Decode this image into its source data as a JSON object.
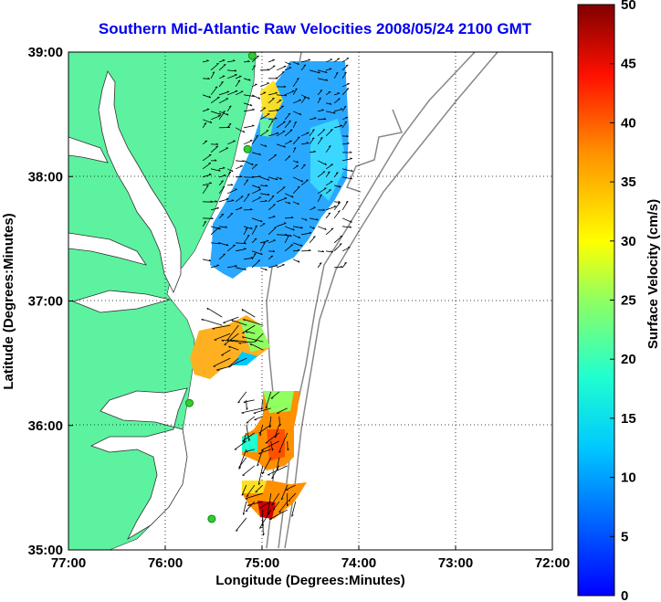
{
  "title": "Southern Mid-Atlantic Raw Velocities 2008/05/24 2100 GMT",
  "xlabel": "Longitude (Degrees:Minutes)",
  "ylabel": "Latitude (Degrees:Minutes)",
  "colorbar_label": "Surface Velocity (cm/s)",
  "x_ticks": [
    "77:00",
    "76:00",
    "75:00",
    "74:00",
    "73:00",
    "72:00"
  ],
  "y_ticks": [
    "39:00",
    "38:00",
    "37:00",
    "36:00",
    "35:00"
  ],
  "colorbar_ticks": [
    "0",
    "5",
    "10",
    "15",
    "20",
    "25",
    "30",
    "35",
    "40",
    "45",
    "50"
  ],
  "colors": {
    "land": "#5cf2a0",
    "title": "#0000ee",
    "station": "#33cc33",
    "contour": "#888888"
  },
  "chart_data": {
    "type": "heatmap",
    "title": "Southern Mid-Atlantic Raw Velocities 2008/05/24 2100 GMT",
    "xlabel": "Longitude (Degrees:Minutes)",
    "ylabel": "Latitude (Degrees:Minutes)",
    "xlim": [
      -77,
      -72
    ],
    "ylim": [
      35,
      39
    ],
    "colorbar": {
      "label": "Surface Velocity (cm/s)",
      "range": [
        0,
        50
      ],
      "colormap": "jet"
    },
    "grid": true,
    "regions": [
      {
        "name": "",
        "lon": [
          -75.65,
          -74.1
        ],
        "lat": [
          37.25,
          38.95
        ],
        "speed_range": [
          3,
          14
        ]
      },
      {
        "name": "",
        "lon": [
          -75.45,
          -74.95
        ],
        "lat": [
          36.45,
          36.9
        ],
        "speed_range": [
          10,
          33
        ]
      },
      {
        "name": "",
        "lon": [
          -75.2,
          -74.7
        ],
        "lat": [
          35.65,
          36.3
        ],
        "speed_range": [
          12,
          38
        ]
      },
      {
        "name": "",
        "lon": [
          -75.2,
          -74.6
        ],
        "lat": [
          35.25,
          35.55
        ],
        "speed_range": [
          25,
          48
        ]
      }
    ],
    "stations": [
      {
        "lon": -75.1,
        "lat": 38.97
      },
      {
        "lon": -75.15,
        "lat": 38.22
      },
      {
        "lon": -75.75,
        "lat": 36.18
      },
      {
        "lon": -75.52,
        "lat": 35.25
      }
    ]
  }
}
